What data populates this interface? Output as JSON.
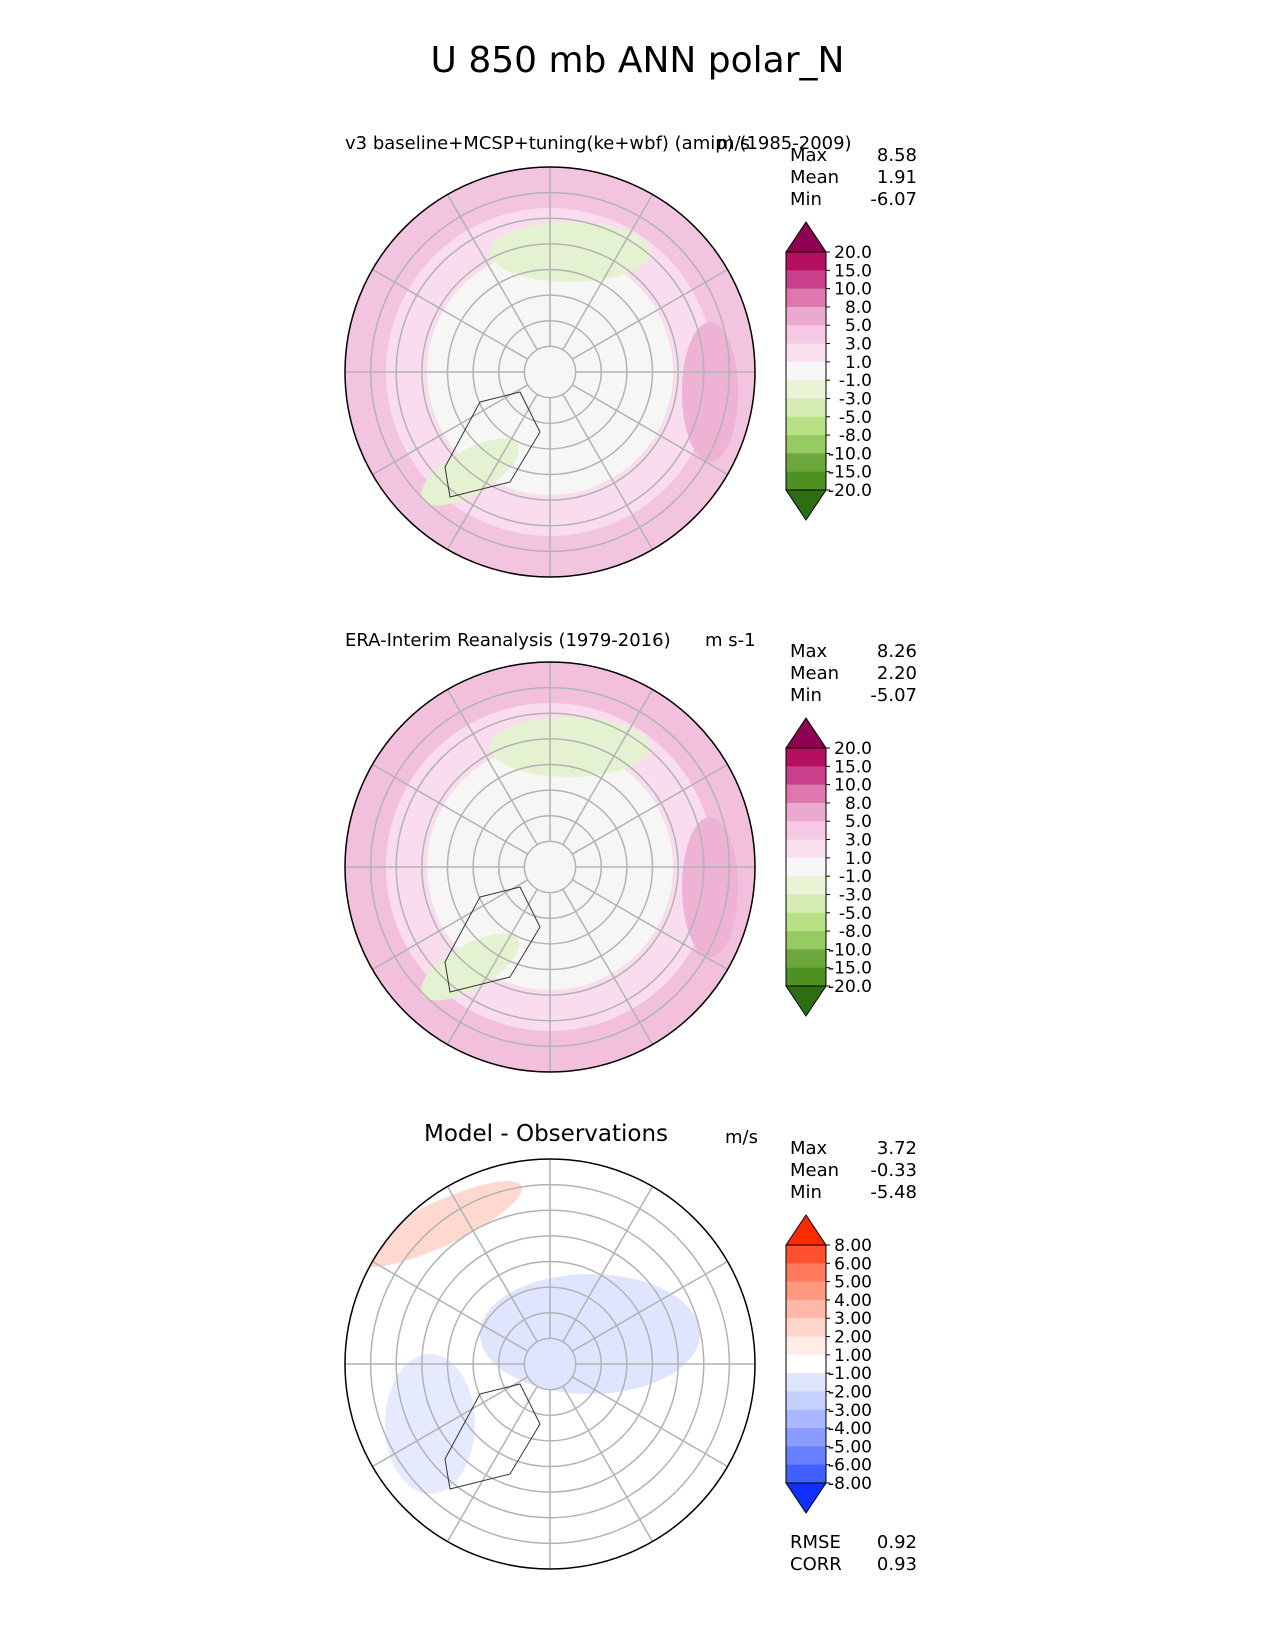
{
  "figure": {
    "title": "U 850 mb ANN polar_N"
  },
  "panels": [
    {
      "title": "v3 baseline+MCSP+tuning(ke+wbf) (amip) (1985-2009)",
      "units": "m/s",
      "stats": [
        {
          "label": "Max",
          "value": "8.58"
        },
        {
          "label": "Mean",
          "value": "1.91"
        },
        {
          "label": "Min",
          "value": "-6.07"
        }
      ]
    },
    {
      "title": "ERA-Interim Reanalysis (1979-2016)",
      "units": "m s-1",
      "stats": [
        {
          "label": "Max",
          "value": "8.26"
        },
        {
          "label": "Mean",
          "value": "2.20"
        },
        {
          "label": "Min",
          "value": "-5.07"
        }
      ]
    },
    {
      "title": "Model - Observations",
      "units": "m/s",
      "stats": [
        {
          "label": "Max",
          "value": "3.72"
        },
        {
          "label": "Mean",
          "value": "-0.33"
        },
        {
          "label": "Min",
          "value": "-5.48"
        }
      ],
      "metrics": [
        {
          "label": "RMSE",
          "value": "0.92"
        },
        {
          "label": "CORR",
          "value": "0.93"
        }
      ]
    }
  ],
  "chart_data": [
    {
      "type": "heatmap",
      "projection": "north-polar-stereographic",
      "variable": "U 850 mb",
      "colorbar": {
        "extend": "both",
        "levels": [
          "20.0",
          "15.0",
          "10.0",
          "8.0",
          "5.0",
          "3.0",
          "1.0",
          "-1.0",
          "-3.0",
          "-5.0",
          "-8.0",
          "-10.0",
          "-15.0",
          "-20.0"
        ],
        "colors": [
          "#8e0152",
          "#b4105f",
          "#c9408a",
          "#de77ae",
          "#eca9d0",
          "#f5c8e3",
          "#fae0ef",
          "#f7f7f7",
          "#eaf4d6",
          "#d4ecb0",
          "#b8e186",
          "#95cb62",
          "#6ba73b",
          "#4d9221",
          "#2d6e14"
        ]
      },
      "fill": {
        "outer": "#f3c4df",
        "mid": "#f9dced",
        "inner": "#f6f6f4",
        "green": "#e5f2d2"
      }
    },
    {
      "type": "heatmap",
      "projection": "north-polar-stereographic",
      "variable": "U 850 mb",
      "colorbar": {
        "extend": "both",
        "levels": [
          "20.0",
          "15.0",
          "10.0",
          "8.0",
          "5.0",
          "3.0",
          "1.0",
          "-1.0",
          "-3.0",
          "-5.0",
          "-8.0",
          "-10.0",
          "-15.0",
          "-20.0"
        ],
        "colors": [
          "#8e0152",
          "#b4105f",
          "#c9408a",
          "#de77ae",
          "#eca9d0",
          "#f5c8e3",
          "#fae0ef",
          "#f7f7f7",
          "#eaf4d6",
          "#d4ecb0",
          "#b8e186",
          "#95cb62",
          "#6ba73b",
          "#4d9221",
          "#2d6e14"
        ]
      },
      "fill": {
        "outer": "#f2c0dc",
        "mid": "#f9dced",
        "inner": "#f6f6f4",
        "green": "#e5f2d2"
      }
    },
    {
      "type": "heatmap",
      "projection": "north-polar-stereographic",
      "variable": "U 850 mb difference",
      "colorbar": {
        "extend": "both",
        "levels": [
          "8.00",
          "6.00",
          "5.00",
          "4.00",
          "3.00",
          "2.00",
          "1.00",
          "-1.00",
          "-2.00",
          "-3.00",
          "-4.00",
          "-5.00",
          "-6.00",
          "-8.00"
        ],
        "colors": [
          "#ff2a00",
          "#ff5030",
          "#ff7a5c",
          "#ff9a80",
          "#ffb8a6",
          "#ffd6cc",
          "#ffece6",
          "#ffffff",
          "#dfe5ff",
          "#c5d0ff",
          "#a8b7ff",
          "#8a9cff",
          "#6680ff",
          "#4060ff",
          "#1030ff"
        ]
      },
      "fill": {
        "outer": "#ffffff",
        "mid": "#ffffff",
        "inner": "#ffffff",
        "green": "#ffffff"
      }
    }
  ]
}
